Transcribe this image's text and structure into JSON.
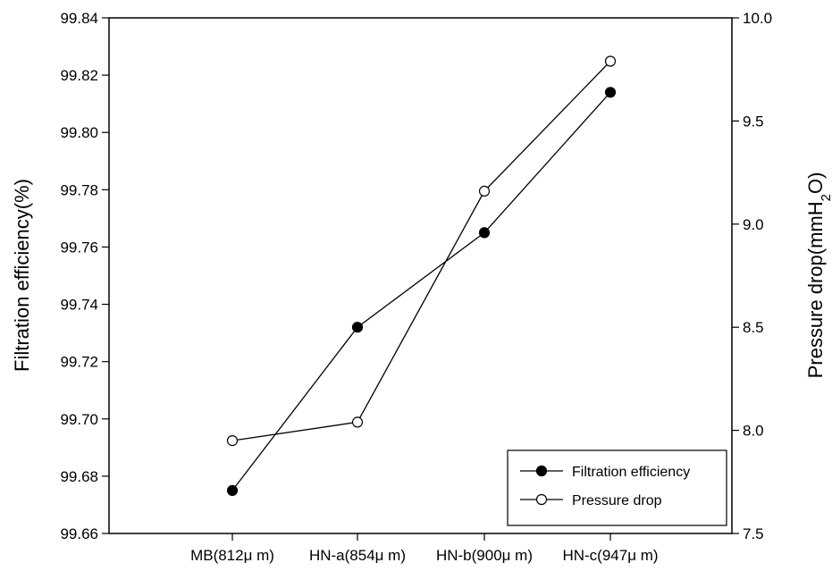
{
  "chart_data": {
    "type": "line",
    "categories": [
      "MB(812μ m)",
      "HN-a(854μ m)",
      "HN-b(900μ m)",
      "HN-c(947μ m)"
    ],
    "series": [
      {
        "name": "Filtration efficiency",
        "axis": "left",
        "marker": "filled-circle",
        "values": [
          99.675,
          99.732,
          99.765,
          99.814
        ]
      },
      {
        "name": "Pressure drop",
        "axis": "right",
        "marker": "open-circle",
        "values": [
          7.95,
          8.04,
          9.16,
          9.79
        ]
      }
    ],
    "ylabel_left": "Filtration efficiency(%)",
    "ylabel_right_prefix": "Pressure drop(mmH",
    "ylabel_right_sub": "2",
    "ylabel_right_suffix": "O)",
    "ylim_left": [
      99.66,
      99.84
    ],
    "ylim_right": [
      7.5,
      10.0
    ],
    "yticks_left": [
      "99.66",
      "99.68",
      "99.70",
      "99.72",
      "99.74",
      "99.76",
      "99.78",
      "99.80",
      "99.82",
      "99.84"
    ],
    "yticks_right": [
      "7.5",
      "8.0",
      "8.5",
      "9.0",
      "9.5",
      "10.0"
    ],
    "grid": false,
    "legend_position": "bottom-right"
  }
}
